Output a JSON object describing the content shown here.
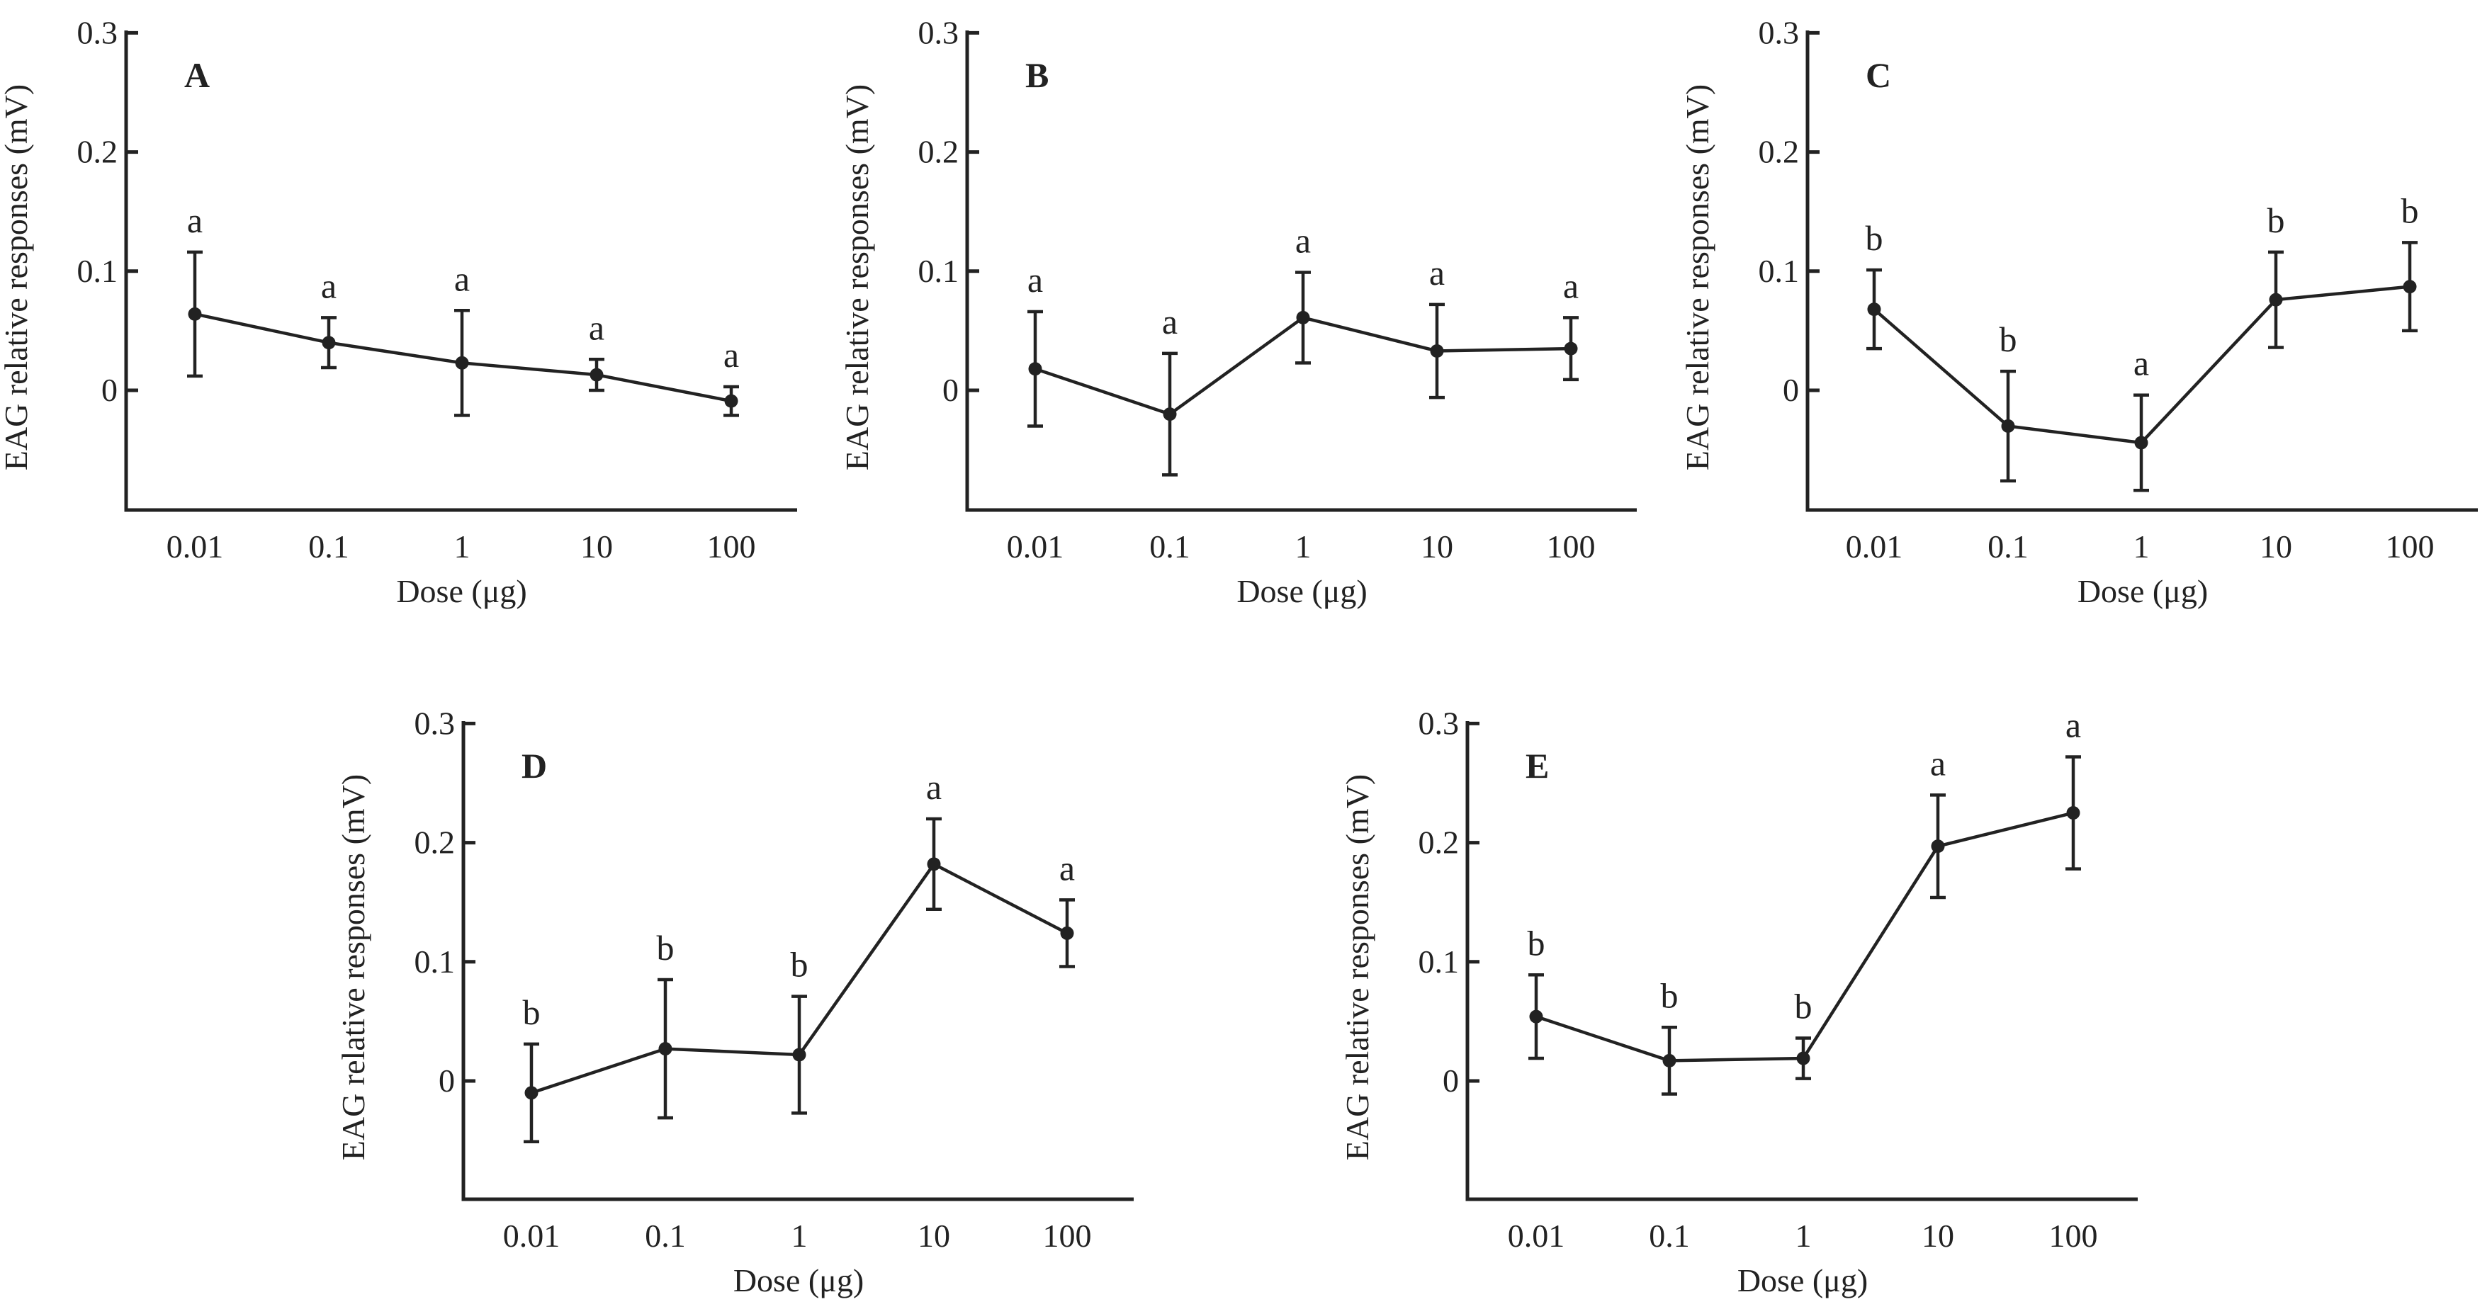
{
  "colors": {
    "ink": "#222222",
    "background": "#ffffff"
  },
  "chart_data": [
    {
      "type": "line",
      "panel": "A",
      "xlabel": "Dose (μg)",
      "ylabel": "EAG relative responses  (mV)",
      "categories": [
        "0.01",
        "0.1",
        "1",
        "10",
        "100"
      ],
      "values": [
        0.064,
        0.04,
        0.023,
        0.013,
        -0.009
      ],
      "errors": [
        0.052,
        0.021,
        0.044,
        0.013,
        0.012
      ],
      "significance": [
        "a",
        "a",
        "a",
        "a",
        "a"
      ],
      "yticks": [
        "0",
        "0.1",
        "0.2",
        "0.3"
      ],
      "ylim": [
        -0.1,
        0.3
      ],
      "grid": false
    },
    {
      "type": "line",
      "panel": "B",
      "xlabel": "Dose (μg)",
      "ylabel": "EAG relative responses  (mV)",
      "categories": [
        "0.01",
        "0.1",
        "1",
        "10",
        "100"
      ],
      "values": [
        0.018,
        -0.02,
        0.061,
        0.033,
        0.035
      ],
      "errors": [
        0.048,
        0.051,
        0.038,
        0.039,
        0.026
      ],
      "significance": [
        "a",
        "a",
        "a",
        "a",
        "a"
      ],
      "yticks": [
        "0",
        "0.1",
        "0.2",
        "0.3"
      ],
      "ylim": [
        -0.1,
        0.3
      ],
      "grid": false
    },
    {
      "type": "line",
      "panel": "C",
      "xlabel": "Dose (μg)",
      "ylabel": "EAG relative responses  (mV)",
      "categories": [
        "0.01",
        "0.1",
        "1",
        "10",
        "100"
      ],
      "values": [
        0.068,
        -0.03,
        -0.044,
        0.076,
        0.087
      ],
      "errors": [
        0.033,
        0.046,
        0.04,
        0.04,
        0.037
      ],
      "significance": [
        "b",
        "b",
        "a",
        "b",
        "b"
      ],
      "yticks": [
        "0",
        "0.1",
        "0.2",
        "0.3"
      ],
      "ylim": [
        -0.1,
        0.3
      ],
      "grid": false
    },
    {
      "type": "line",
      "panel": "D",
      "xlabel": "Dose (μg)",
      "ylabel": "EAG relative responses  (mV)",
      "categories": [
        "0.01",
        "0.1",
        "1",
        "10",
        "100"
      ],
      "values": [
        -0.01,
        0.027,
        0.022,
        0.182,
        0.124
      ],
      "errors": [
        0.041,
        0.058,
        0.049,
        0.038,
        0.028
      ],
      "significance": [
        "b",
        "b",
        "b",
        "a",
        "a"
      ],
      "yticks": [
        "0",
        "0.1",
        "0.2",
        "0.3"
      ],
      "ylim": [
        -0.1,
        0.3
      ],
      "grid": false
    },
    {
      "type": "line",
      "panel": "E",
      "xlabel": "Dose (μg)",
      "ylabel": "EAG relative responses  (mV)",
      "categories": [
        "0.01",
        "0.1",
        "1",
        "10",
        "100"
      ],
      "values": [
        0.054,
        0.017,
        0.019,
        0.197,
        0.225
      ],
      "errors": [
        0.035,
        0.028,
        0.017,
        0.043,
        0.047
      ],
      "significance": [
        "b",
        "b",
        "b",
        "a",
        "a"
      ],
      "yticks": [
        "0",
        "0.1",
        "0.2",
        "0.3"
      ],
      "ylim": [
        -0.1,
        0.3
      ],
      "grid": false
    }
  ]
}
